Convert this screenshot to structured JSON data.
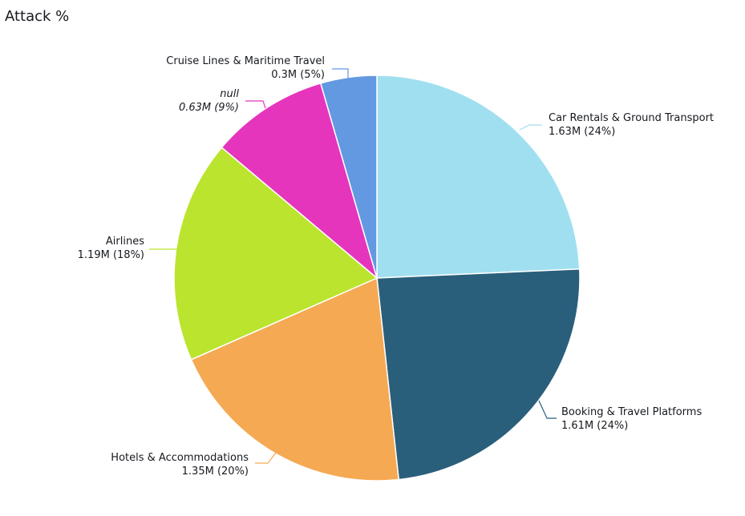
{
  "title": "Attack %",
  "chart_data": {
    "type": "pie",
    "title": "Attack %",
    "slices": [
      {
        "name": "Car Rentals & Ground Transport",
        "value": 1.63,
        "value_label": "1.63M (24%)",
        "percent": 24,
        "color": "#a0dff0",
        "italic": false
      },
      {
        "name": "Booking & Travel Platforms",
        "value": 1.61,
        "value_label": "1.61M (24%)",
        "percent": 24,
        "color": "#2a5f7b",
        "italic": false
      },
      {
        "name": "Hotels & Accommodations",
        "value": 1.35,
        "value_label": "1.35M (20%)",
        "percent": 20,
        "color": "#f5a953",
        "italic": false
      },
      {
        "name": "Airlines",
        "value": 1.19,
        "value_label": "1.19M (18%)",
        "percent": 18,
        "color": "#bbe42f",
        "italic": false
      },
      {
        "name": "null",
        "value": 0.63,
        "value_label": "0.63M (9%)",
        "percent": 9,
        "color": "#e535bd",
        "italic": true
      },
      {
        "name": "Cruise Lines & Maritime Travel",
        "value": 0.3,
        "value_label": "0.3M (5%)",
        "percent": 5,
        "color": "#6299e0",
        "italic": false
      }
    ],
    "start": "12 o'clock",
    "direction": "clockwise",
    "legend": "none"
  }
}
